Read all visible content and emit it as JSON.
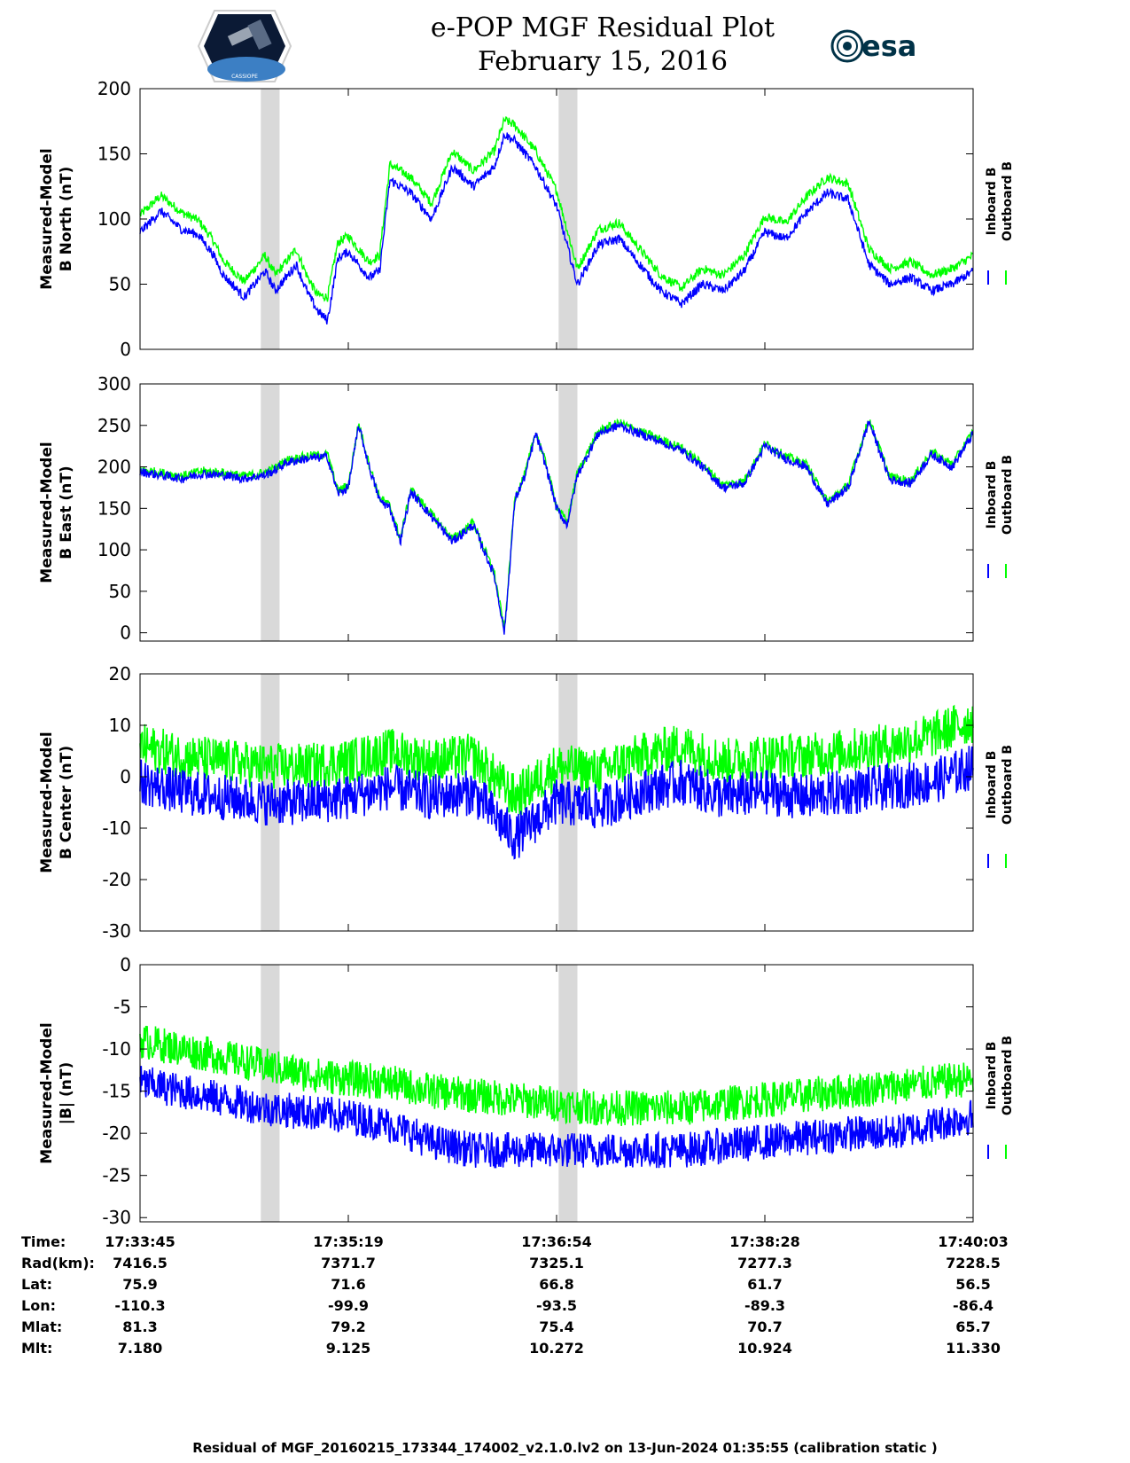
{
  "header": {
    "title": "e-POP MGF Residual Plot",
    "date": "February 15, 2016",
    "logo_left": "CASSIOPE",
    "logo_right": "esa",
    "logo_left_icon": "satellite-mission-patch-icon",
    "logo_right_icon": "esa-logo-icon"
  },
  "colors": {
    "inboard": "#0000ff",
    "outboard": "#00ff00",
    "shading": "#d9d9d9",
    "axis": "#000000"
  },
  "chart_data": [
    {
      "type": "line",
      "ylabel": [
        "Measured-Model",
        "B North (nT)"
      ],
      "ylim": [
        0,
        200
      ],
      "yticks": [
        "0",
        "50",
        "100",
        "150",
        "200"
      ],
      "x_seconds": [
        0,
        10,
        20,
        28,
        35,
        40,
        50,
        60,
        65,
        70,
        75,
        80,
        85,
        90,
        95,
        100,
        110,
        115,
        120,
        130,
        140,
        150,
        160,
        170,
        175,
        180,
        190,
        200,
        210,
        220,
        230,
        240,
        250,
        260,
        270,
        280,
        290,
        300,
        310,
        320,
        330,
        340,
        350,
        360,
        370,
        380,
        390,
        395,
        400
      ],
      "series": [
        {
          "name": "Inboard B",
          "values": [
            90,
            106,
            92,
            88,
            73,
            57,
            40,
            60,
            45,
            55,
            65,
            45,
            30,
            22,
            70,
            75,
            55,
            60,
            130,
            120,
            100,
            140,
            125,
            140,
            165,
            160,
            140,
            110,
            50,
            80,
            85,
            65,
            45,
            35,
            50,
            45,
            60,
            90,
            85,
            105,
            120,
            115,
            65,
            50,
            55,
            45,
            50,
            55,
            60
          ]
        },
        {
          "name": "Outboard B",
          "values": [
            103,
            118,
            105,
            99,
            84,
            68,
            52,
            72,
            57,
            67,
            77,
            57,
            42,
            40,
            82,
            87,
            67,
            72,
            142,
            132,
            112,
            152,
            137,
            152,
            176,
            172,
            152,
            122,
            62,
            92,
            97,
            77,
            57,
            47,
            62,
            57,
            72,
            102,
            97,
            117,
            132,
            127,
            77,
            62,
            67,
            57,
            62,
            67,
            72
          ]
        }
      ]
    },
    {
      "type": "line",
      "ylabel": [
        "Measured-Model",
        "B East (nT)"
      ],
      "ylim": [
        -10,
        300
      ],
      "yticks": [
        "0",
        "50",
        "100",
        "150",
        "200",
        "250",
        "300"
      ],
      "x_seconds": [
        0,
        10,
        20,
        30,
        40,
        50,
        60,
        65,
        70,
        80,
        90,
        95,
        100,
        105,
        110,
        115,
        120,
        125,
        130,
        135,
        140,
        150,
        160,
        170,
        175,
        180,
        185,
        190,
        195,
        200,
        205,
        210,
        220,
        230,
        240,
        250,
        260,
        270,
        280,
        290,
        300,
        310,
        320,
        330,
        340,
        350,
        360,
        370,
        380,
        390,
        400
      ],
      "series": [
        {
          "name": "Inboard B",
          "values": [
            194,
            190,
            186,
            192,
            190,
            186,
            190,
            196,
            205,
            210,
            212,
            168,
            175,
            250,
            200,
            160,
            150,
            110,
            170,
            155,
            140,
            110,
            130,
            70,
            0,
            160,
            190,
            240,
            200,
            150,
            130,
            190,
            240,
            250,
            240,
            230,
            220,
            200,
            175,
            180,
            225,
            210,
            200,
            155,
            175,
            255,
            185,
            180,
            215,
            200,
            240
          ]
        },
        {
          "name": "Outboard B",
          "values": [
            197,
            193,
            189,
            195,
            193,
            189,
            193,
            199,
            208,
            213,
            215,
            171,
            178,
            253,
            203,
            163,
            153,
            113,
            173,
            158,
            143,
            113,
            133,
            73,
            3,
            163,
            193,
            243,
            203,
            153,
            133,
            193,
            243,
            253,
            243,
            233,
            223,
            203,
            178,
            183,
            228,
            213,
            203,
            158,
            178,
            258,
            188,
            183,
            218,
            203,
            243
          ]
        }
      ]
    },
    {
      "type": "line",
      "ylabel": [
        "Measured-Model",
        "B Center (nT)"
      ],
      "ylim": [
        -30,
        20
      ],
      "yticks": [
        "-30",
        "-20",
        "-10",
        "0",
        "10",
        "20"
      ],
      "x_seconds": [
        0,
        20,
        40,
        60,
        80,
        100,
        120,
        140,
        160,
        180,
        200,
        220,
        240,
        260,
        280,
        300,
        320,
        340,
        360,
        380,
        400
      ],
      "series": [
        {
          "name": "Inboard B",
          "values": [
            -1,
            -3,
            -4,
            -5,
            -5,
            -4,
            -2,
            -4,
            -3,
            -12,
            -5,
            -6,
            -3,
            -1,
            -4,
            -3,
            -4,
            -3,
            -2,
            -1,
            2
          ]
        },
        {
          "name": "Outboard B",
          "values": [
            6,
            4,
            3,
            2,
            2,
            3,
            5,
            3,
            4,
            -4,
            2,
            1,
            4,
            6,
            3,
            4,
            4,
            5,
            6,
            8,
            11
          ]
        }
      ]
    },
    {
      "type": "line",
      "ylabel": [
        "Measured-Model",
        "|B| (nT)"
      ],
      "ylim": [
        -30.5,
        0
      ],
      "yticks": [
        "-30",
        "-25",
        "-20",
        "-15",
        "-10",
        "-5",
        "0"
      ],
      "x_seconds": [
        0,
        20,
        40,
        60,
        80,
        100,
        120,
        140,
        160,
        180,
        200,
        220,
        240,
        260,
        280,
        300,
        320,
        340,
        360,
        380,
        400
      ],
      "series": [
        {
          "name": "Inboard B",
          "values": [
            -14,
            -15,
            -16,
            -17,
            -17.5,
            -18,
            -19,
            -21,
            -22,
            -22,
            -22,
            -22,
            -22,
            -22,
            -21.5,
            -21,
            -20.5,
            -20,
            -20,
            -19,
            -18
          ]
        },
        {
          "name": "Outboard B",
          "values": [
            -9,
            -10,
            -11,
            -12,
            -13,
            -13.5,
            -14,
            -15,
            -15.5,
            -16,
            -16.5,
            -17,
            -17,
            -17,
            -16.5,
            -16,
            -15.5,
            -15,
            -14.5,
            -14,
            -13.5
          ]
        }
      ]
    }
  ],
  "legend": [
    "Inboard B",
    "Outboard B"
  ],
  "x_axis": {
    "row_labels": [
      "Time:",
      "Rad(km):",
      "Lat:",
      "Lon:",
      "Mlat:",
      "Mlt:"
    ],
    "columns": [
      [
        "17:33:45",
        "7416.5",
        "75.9",
        "-110.3",
        "81.3",
        "7.180"
      ],
      [
        "17:35:19",
        "7371.7",
        "71.6",
        "-99.9",
        "79.2",
        "9.125"
      ],
      [
        "17:36:54",
        "7325.1",
        "66.8",
        "-93.5",
        "75.4",
        "10.272"
      ],
      [
        "17:38:28",
        "7277.3",
        "61.7",
        "-89.3",
        "70.7",
        "10.924"
      ],
      [
        "17:40:03",
        "7228.5",
        "56.5",
        "-86.4",
        "65.7",
        "11.330"
      ]
    ]
  },
  "shaded_intervals_seconds": [
    [
      58,
      67
    ],
    [
      201,
      210
    ]
  ],
  "footer": "Residual of MGF_20160215_173344_174002_v2.1.0.lv2 on 13-Jun-2024 01:35:55 (calibration static )"
}
